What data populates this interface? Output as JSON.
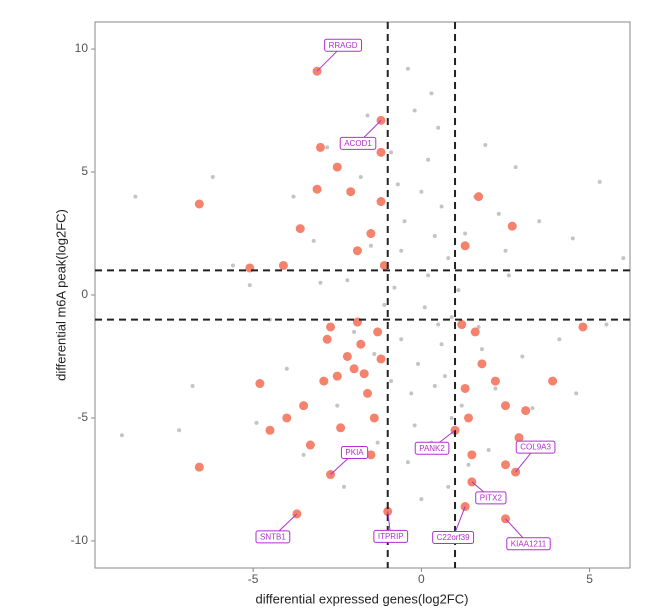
{
  "chart_data": {
    "type": "scatter",
    "x_label": "differential expressed genes(log2FC)",
    "y_label": "differential m6A peak(log2FC)",
    "xlim": [
      -9.7,
      6.2
    ],
    "ylim": [
      -11.1,
      11.1
    ],
    "xticks": [
      -5,
      0,
      5
    ],
    "yticks": [
      -10,
      -5,
      0,
      5,
      10
    ],
    "vlines": [
      -1,
      1
    ],
    "hlines": [
      -1,
      1
    ],
    "series": [
      {
        "color": "#c4c4c4",
        "x": [
          -0.5,
          0.2,
          0.6,
          -0.3,
          0.8,
          -0.8,
          0.1,
          0.4,
          -0.6,
          0.3,
          0.5,
          -0.2,
          0.7,
          -0.7,
          0.9,
          -0.4,
          0.2,
          -0.1,
          0.6,
          -0.9,
          1.3,
          1.8,
          2.5,
          -1.5,
          -2,
          1.6,
          -1.8,
          2.2,
          -2.5,
          3.0,
          -3.2,
          3.5,
          -4,
          1.2,
          -1.3,
          2.8,
          -2.8,
          4.1,
          -5.1,
          -8.5,
          -6.8,
          -7.2,
          -8.9,
          5.5,
          4.6,
          5.3,
          -5.6,
          3.8,
          -3.5,
          1.9,
          0.0,
          -0.4,
          0.8,
          0.3,
          -1.6,
          1.4,
          -6.2,
          6.0,
          -4.5,
          2.6,
          -2.2,
          1.1,
          -1.1,
          0.5,
          -0.6,
          0.0,
          -0.2,
          0.9,
          -0.9,
          0.4,
          3.3,
          -3.8,
          4.5,
          -4.9,
          2.0,
          -2.3,
          1.7,
          -1.4,
          2.3,
          -3.0
        ],
        "y": [
          3,
          5.5,
          -2,
          -4,
          1.5,
          0.3,
          -0.5,
          2.4,
          -1.8,
          -6,
          6.8,
          7.5,
          -3.3,
          4.5,
          -5,
          -6.8,
          0.8,
          -2.8,
          3.6,
          -3.5,
          2.5,
          -2.2,
          1.8,
          2,
          -1.5,
          4,
          4.8,
          -3.8,
          -4.5,
          -2.5,
          2.2,
          3,
          -3,
          -4.5,
          -6,
          5.2,
          6,
          -1.8,
          0.4,
          4,
          -3.7,
          -5.5,
          -5.7,
          -1.2,
          -4,
          4.6,
          1.2,
          -6,
          -6.5,
          6.1,
          -8.3,
          9.2,
          -7.8,
          8.2,
          7.3,
          -6.9,
          4.8,
          1.5,
          -1,
          0.8,
          0.6,
          0.2,
          -0.4,
          -1.2,
          1.8,
          4.2,
          -5.3,
          -0.9,
          5.8,
          -3.7,
          -4.6,
          4,
          2.3,
          -5.2,
          -6.3,
          -7.8,
          -1.3,
          -2.4,
          3.3,
          0.5
        ]
      },
      {
        "color": "#f4826c",
        "x": [
          -1.5,
          -1.8,
          -2.2,
          -2.5,
          -1.3,
          -1.6,
          -2.9,
          -3.5,
          -1.2,
          -2.1,
          -3.0,
          -2.5,
          -1.9,
          -3.6,
          -4.1,
          -4.8,
          -4.0,
          -3.3,
          -2.4,
          -1.4,
          -6.6,
          -6.6,
          -5.1,
          -4.5,
          -2.0,
          -1.7,
          -1.2,
          -1.5,
          -2.8,
          -3.1,
          1.3,
          1.6,
          1.8,
          2.2,
          1.4,
          2.5,
          3.1,
          3.9,
          2.7,
          1.7,
          4.8,
          2.9,
          2.5,
          1.2,
          1.3,
          -1.1,
          -1.2,
          -2.7,
          -1.9,
          1.5
        ],
        "y": [
          2.5,
          -2,
          -2.5,
          -3.3,
          -1.5,
          -4,
          -3.5,
          -4.5,
          3.8,
          4.2,
          6.0,
          5.2,
          1.8,
          2.7,
          1.2,
          -3.6,
          -5.0,
          -6.1,
          -5.4,
          -5.0,
          3.7,
          -7.0,
          1.1,
          -5.5,
          -3.0,
          -3.2,
          -2.6,
          -6.5,
          -1.8,
          4.3,
          2.0,
          -1.5,
          -2.8,
          -3.5,
          -5.0,
          -4.5,
          -4.7,
          -3.5,
          2.8,
          4.0,
          -1.3,
          -5.8,
          -6.9,
          -1.2,
          -3.8,
          1.2,
          5.8,
          -1.3,
          -1.1,
          -6.5
        ]
      },
      {
        "color": "#f4826c",
        "x": [
          -3.1,
          -1.2,
          -2.7,
          -3.7,
          -1.0,
          1.0,
          2.8,
          1.5,
          1.3,
          2.5
        ],
        "y": [
          9.1,
          7.1,
          -7.3,
          -8.9,
          -8.8,
          -5.5,
          -7.2,
          -7.6,
          -8.6,
          -9.1
        ],
        "labels": [
          "RRAGD",
          "ACOD1",
          "PKIA",
          "SNTB1",
          "ITPRIP",
          "PANK2",
          "COL9A3",
          "PITX2",
          "C22orf39",
          "KIAA1211"
        ]
      }
    ]
  }
}
